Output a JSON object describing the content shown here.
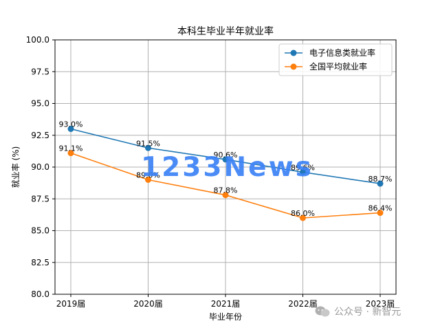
{
  "chart_data": {
    "type": "line",
    "title": "本科生毕业半年就业率",
    "xlabel": "毕业年份",
    "ylabel": "就业率 (%)",
    "categories": [
      "2019届",
      "2020届",
      "2021届",
      "2022届",
      "2023届"
    ],
    "ylim": [
      80.0,
      100.0
    ],
    "yticks": [
      "80.0",
      "82.5",
      "85.0",
      "87.5",
      "90.0",
      "92.5",
      "95.0",
      "97.5",
      "100.0"
    ],
    "grid": true,
    "legend_position": "top-right",
    "series": [
      {
        "name": "电子信息类就业率",
        "color": "#1f77b4",
        "values": [
          93.0,
          91.5,
          90.6,
          89.6,
          88.7
        ],
        "labels": [
          "93.0%",
          "91.5%",
          "90.6%",
          "89.6%",
          "88.7%"
        ]
      },
      {
        "name": "全国平均就业率",
        "color": "#ff7f0e",
        "values": [
          91.1,
          89.0,
          87.8,
          86.0,
          86.4
        ],
        "labels": [
          "91.1%",
          "89.0%",
          "87.8%",
          "86.0%",
          "86.4%"
        ]
      }
    ]
  },
  "watermark": {
    "text": "1233News"
  },
  "source": {
    "text": "公众号 · 新智元"
  }
}
